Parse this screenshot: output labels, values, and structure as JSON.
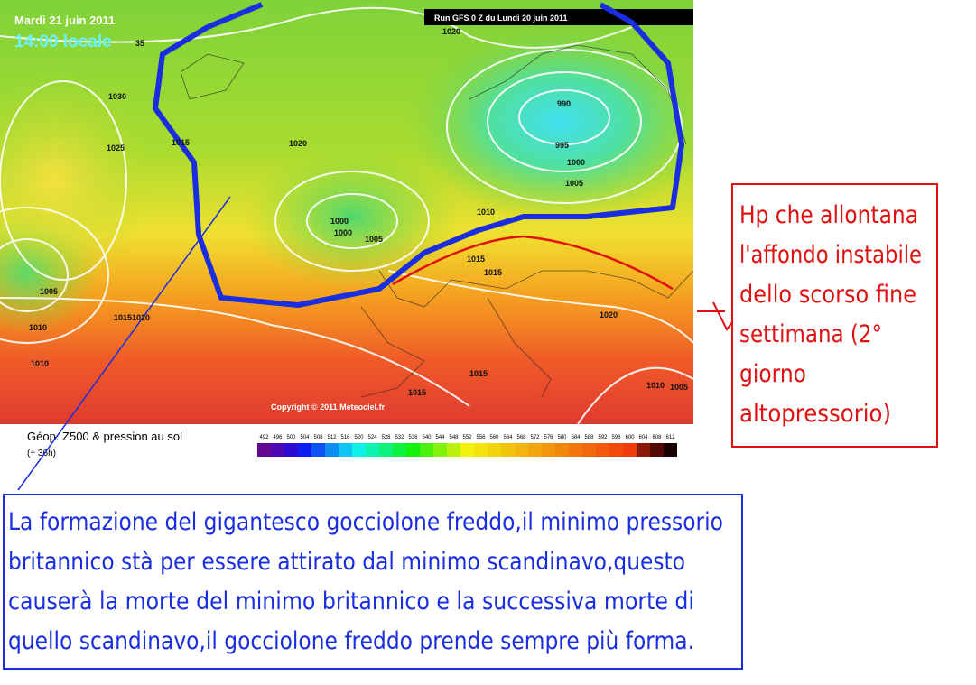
{
  "map": {
    "date": "Mardi 21 juin 2011",
    "time": "14:00 locale",
    "run": "Run GFS 0 Z du Lundi 20 juin 2011",
    "copyright": "Copyright © 2011 Meteociel.fr",
    "isobar_labels": [
      "1020",
      "1030",
      "1025",
      "1015",
      "1020",
      "990",
      "995",
      "1000",
      "1005",
      "1010",
      "1000",
      "1000",
      "1005",
      "1005",
      "1015",
      "1015",
      "10151020",
      "1010",
      "1010",
      "1020",
      "1010",
      "1005",
      "1015",
      "1015",
      "35"
    ],
    "legend_title": "Géop. Z500 & pression au sol",
    "legend_subtitle": "(+ 36h)",
    "scale": [
      492,
      496,
      500,
      504,
      508,
      512,
      516,
      520,
      524,
      528,
      532,
      536,
      540,
      544,
      548,
      552,
      556,
      560,
      564,
      568,
      572,
      576,
      580,
      584,
      588,
      592,
      596,
      600,
      604,
      608,
      612
    ]
  },
  "annotation_right": {
    "lines": [
      "Hp che allontana",
      "l'affondo instabile",
      "dello scorso fine",
      "settimana (2°",
      "giorno",
      "altopressorio)"
    ]
  },
  "annotation_bottom": {
    "lines": [
      "La formazione del gigantesco gocciolone freddo,il minimo pressorio",
      "britannico stà per essere attirato dal minimo scandinavo,questo",
      "causerà la morte del minimo britannico e la successiva morte di",
      "quello scandinavo,il gocciolone freddo prende sempre più forma."
    ]
  }
}
